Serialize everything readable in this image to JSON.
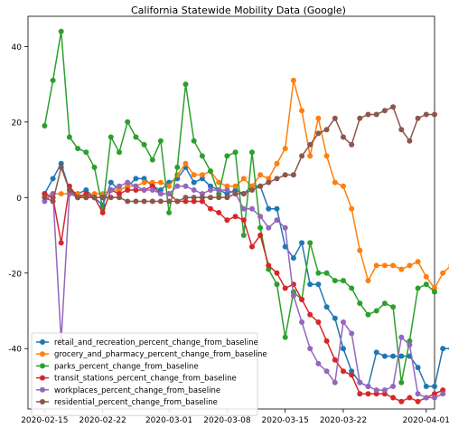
{
  "chart_data": {
    "type": "line",
    "title": "California Statewide Mobility Data (Google)",
    "xlabel": "",
    "ylabel": "",
    "x_start": "2020-02-15",
    "xlim": [
      "2020-02-13",
      "2020-04-02"
    ],
    "ylim": [
      -56,
      48
    ],
    "x_ticks": [
      "2020-02-15",
      "2020-02-22",
      "2020-03-01",
      "2020-03-08",
      "2020-03-15",
      "2020-03-22",
      "2020-04-01"
    ],
    "y_ticks": [
      40,
      20,
      0,
      -20,
      -40
    ],
    "grid": false,
    "legend_position": "lower-left",
    "series": [
      {
        "name": "retail_and_recreation_percent_change_from_baseline",
        "color": "#1f77b4",
        "values": [
          1,
          5,
          9,
          2,
          1,
          2,
          0,
          -2,
          4,
          2,
          3,
          5,
          5,
          3,
          2,
          4,
          5,
          8,
          4,
          5,
          3,
          2,
          1,
          2,
          1,
          3,
          3,
          -3,
          -3,
          -13,
          -16,
          -12,
          -23,
          -23,
          -29,
          -32,
          -40,
          -46,
          -49,
          -50,
          -41,
          -42,
          -42,
          -42,
          -42,
          -45,
          -50,
          -50,
          -40,
          -40,
          -39
        ]
      },
      {
        "name": "grocery_and_pharmacy_percent_change_from_baseline",
        "color": "#ff7f0e",
        "values": [
          0,
          1,
          1,
          1,
          1,
          0,
          1,
          1,
          2,
          2,
          3,
          3,
          4,
          4,
          4,
          3,
          6,
          9,
          6,
          6,
          7,
          4,
          3,
          3,
          5,
          3,
          6,
          5,
          9,
          13,
          31,
          23,
          11,
          21,
          11,
          4,
          3,
          -3,
          -14,
          -22,
          -18,
          -18,
          -18,
          -19,
          -18,
          -17,
          -21,
          -24,
          -20,
          -18,
          -14
        ]
      },
      {
        "name": "parks_percent_change_from_baseline",
        "color": "#2ca02c",
        "values": [
          19,
          31,
          44,
          16,
          13,
          12,
          8,
          -3,
          16,
          12,
          20,
          16,
          14,
          10,
          15,
          -4,
          8,
          30,
          15,
          11,
          7,
          1,
          11,
          12,
          -10,
          12,
          -8,
          -19,
          -23,
          -37,
          -25,
          -27,
          -12,
          -20,
          -20,
          -22,
          -22,
          -24,
          -28,
          -31,
          -30,
          -28,
          -29,
          -49,
          -38,
          -24,
          -23,
          -25
        ]
      },
      {
        "name": "transit_stations_percent_change_from_baseline",
        "color": "#d62728",
        "values": [
          1,
          0,
          -12,
          3,
          0,
          1,
          0,
          -4,
          2,
          1,
          2,
          2,
          2,
          3,
          1,
          1,
          -1,
          -1,
          -1,
          -1,
          -3,
          -4,
          -6,
          -5,
          -6,
          -13,
          -10,
          -18,
          -20,
          -24,
          -23,
          -27,
          -31,
          -33,
          -38,
          -43,
          -46,
          -47,
          -52,
          -52,
          -52,
          -52,
          -53,
          -54,
          -53,
          -54,
          -53,
          -52,
          -51
        ]
      },
      {
        "name": "workplaces_percent_change_from_baseline",
        "color": "#9467bd",
        "values": [
          -1,
          1,
          -38,
          1,
          0,
          0,
          0,
          0,
          2,
          3,
          4,
          3,
          2,
          2,
          1,
          1,
          3,
          3,
          2,
          1,
          2,
          2,
          2,
          1,
          -3,
          -3,
          -5,
          -8,
          -6,
          -8,
          -26,
          -33,
          -40,
          -44,
          -46,
          -49,
          -33,
          -36,
          -49,
          -50,
          -51,
          -51,
          -50,
          -37,
          -39,
          -52,
          -53,
          -53,
          -52
        ]
      },
      {
        "name": "residential_percent_change_from_baseline",
        "color": "#8c564b",
        "values": [
          0,
          -1,
          8,
          2,
          0,
          0,
          0,
          0,
          0,
          0,
          -1,
          -1,
          -1,
          -1,
          -1,
          -1,
          -1,
          0,
          0,
          0,
          0,
          0,
          0,
          1,
          1,
          2,
          3,
          4,
          5,
          6,
          6,
          11,
          14,
          17,
          18,
          21,
          16,
          14,
          21,
          22,
          22,
          23,
          24,
          18,
          15,
          21,
          22,
          22
        ]
      }
    ]
  }
}
